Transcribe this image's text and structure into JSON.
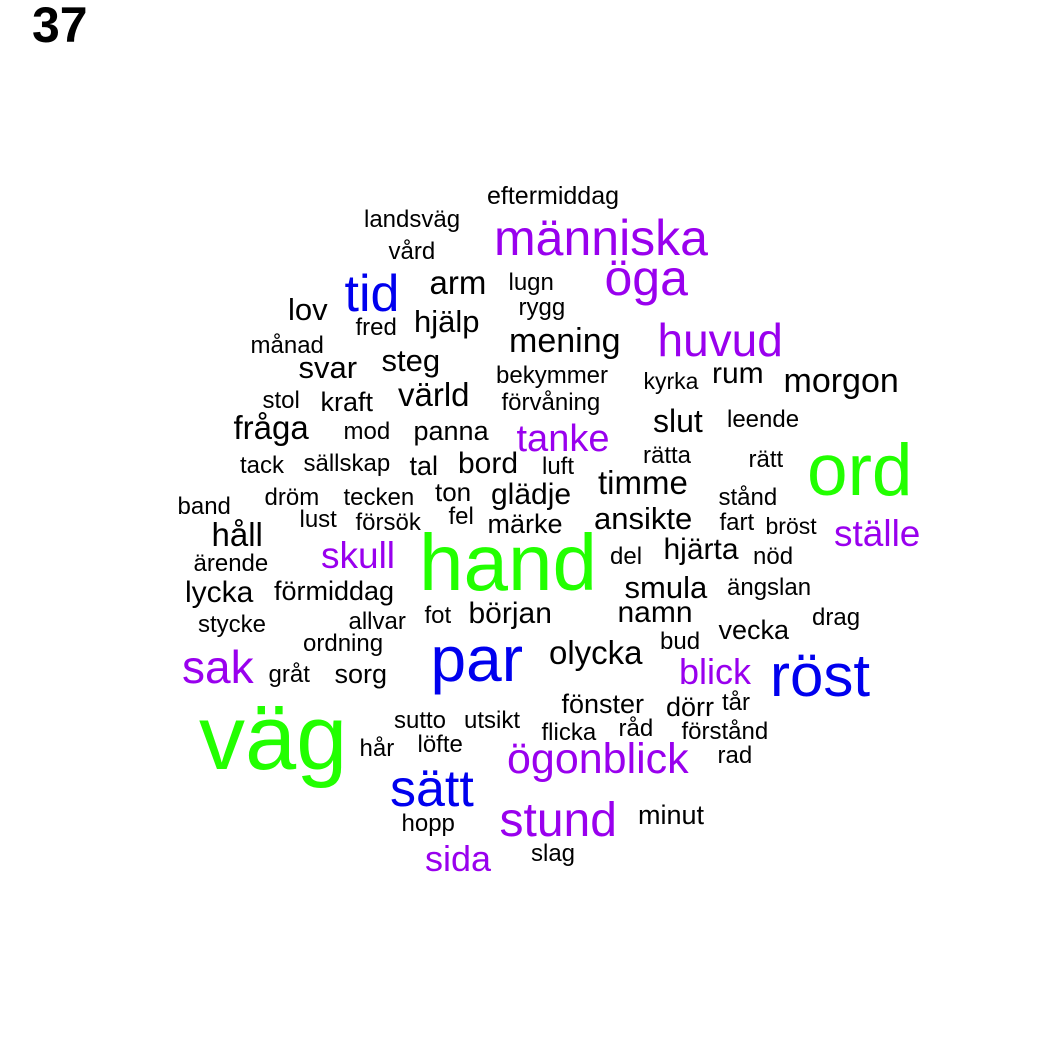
{
  "page_number": "37",
  "colors": {
    "tier_1": "#22ff00",
    "tier_2": "#0000ee",
    "tier_3": "#9900ee",
    "tier_4": "#000000"
  },
  "words": [
    {
      "text": "väg",
      "tier": 1
    },
    {
      "text": "hand",
      "tier": 1
    },
    {
      "text": "ord",
      "tier": 1
    },
    {
      "text": "par",
      "tier": 2
    },
    {
      "text": "röst",
      "tier": 2
    },
    {
      "text": "sätt",
      "tier": 2
    },
    {
      "text": "tid",
      "tier": 2
    },
    {
      "text": "människa",
      "tier": 3
    },
    {
      "text": "öga",
      "tier": 3
    },
    {
      "text": "huvud",
      "tier": 3
    },
    {
      "text": "tanke",
      "tier": 3
    },
    {
      "text": "ställe",
      "tier": 3
    },
    {
      "text": "skull",
      "tier": 3
    },
    {
      "text": "sak",
      "tier": 3
    },
    {
      "text": "blick",
      "tier": 3
    },
    {
      "text": "ögonblick",
      "tier": 3
    },
    {
      "text": "stund",
      "tier": 3
    },
    {
      "text": "sida",
      "tier": 3
    },
    {
      "text": "eftermiddag",
      "tier": 4
    },
    {
      "text": "landsväg",
      "tier": 4
    },
    {
      "text": "vård",
      "tier": 4
    },
    {
      "text": "arm",
      "tier": 4
    },
    {
      "text": "lugn",
      "tier": 4
    },
    {
      "text": "lov",
      "tier": 4
    },
    {
      "text": "rygg",
      "tier": 4
    },
    {
      "text": "fred",
      "tier": 4
    },
    {
      "text": "hjälp",
      "tier": 4
    },
    {
      "text": "månad",
      "tier": 4
    },
    {
      "text": "mening",
      "tier": 4
    },
    {
      "text": "steg",
      "tier": 4
    },
    {
      "text": "svar",
      "tier": 4
    },
    {
      "text": "bekymmer",
      "tier": 4
    },
    {
      "text": "kyrka",
      "tier": 4
    },
    {
      "text": "rum",
      "tier": 4
    },
    {
      "text": "morgon",
      "tier": 4
    },
    {
      "text": "stol",
      "tier": 4
    },
    {
      "text": "kraft",
      "tier": 4
    },
    {
      "text": "värld",
      "tier": 4
    },
    {
      "text": "förvåning",
      "tier": 4
    },
    {
      "text": "slut",
      "tier": 4
    },
    {
      "text": "leende",
      "tier": 4
    },
    {
      "text": "fråga",
      "tier": 4
    },
    {
      "text": "mod",
      "tier": 4
    },
    {
      "text": "panna",
      "tier": 4
    },
    {
      "text": "rätta",
      "tier": 4
    },
    {
      "text": "rätt",
      "tier": 4
    },
    {
      "text": "tack",
      "tier": 4
    },
    {
      "text": "sällskap",
      "tier": 4
    },
    {
      "text": "tal",
      "tier": 4
    },
    {
      "text": "bord",
      "tier": 4
    },
    {
      "text": "luft",
      "tier": 4
    },
    {
      "text": "timme",
      "tier": 4
    },
    {
      "text": "band",
      "tier": 4
    },
    {
      "text": "dröm",
      "tier": 4
    },
    {
      "text": "tecken",
      "tier": 4
    },
    {
      "text": "ton",
      "tier": 4
    },
    {
      "text": "glädje",
      "tier": 4
    },
    {
      "text": "stånd",
      "tier": 4
    },
    {
      "text": "håll",
      "tier": 4
    },
    {
      "text": "lust",
      "tier": 4
    },
    {
      "text": "försök",
      "tier": 4
    },
    {
      "text": "fel",
      "tier": 4
    },
    {
      "text": "märke",
      "tier": 4
    },
    {
      "text": "ansikte",
      "tier": 4
    },
    {
      "text": "fart",
      "tier": 4
    },
    {
      "text": "bröst",
      "tier": 4
    },
    {
      "text": "ärende",
      "tier": 4
    },
    {
      "text": "del",
      "tier": 4
    },
    {
      "text": "hjärta",
      "tier": 4
    },
    {
      "text": "nöd",
      "tier": 4
    },
    {
      "text": "lycka",
      "tier": 4
    },
    {
      "text": "förmiddag",
      "tier": 4
    },
    {
      "text": "smula",
      "tier": 4
    },
    {
      "text": "ängslan",
      "tier": 4
    },
    {
      "text": "stycke",
      "tier": 4
    },
    {
      "text": "allvar",
      "tier": 4
    },
    {
      "text": "fot",
      "tier": 4
    },
    {
      "text": "början",
      "tier": 4
    },
    {
      "text": "namn",
      "tier": 4
    },
    {
      "text": "drag",
      "tier": 4
    },
    {
      "text": "ordning",
      "tier": 4
    },
    {
      "text": "vecka",
      "tier": 4
    },
    {
      "text": "bud",
      "tier": 4
    },
    {
      "text": "olycka",
      "tier": 4
    },
    {
      "text": "gråt",
      "tier": 4
    },
    {
      "text": "sorg",
      "tier": 4
    },
    {
      "text": "fönster",
      "tier": 4
    },
    {
      "text": "dörr",
      "tier": 4
    },
    {
      "text": "tår",
      "tier": 4
    },
    {
      "text": "sutto",
      "tier": 4
    },
    {
      "text": "utsikt",
      "tier": 4
    },
    {
      "text": "flicka",
      "tier": 4
    },
    {
      "text": "råd",
      "tier": 4
    },
    {
      "text": "förstånd",
      "tier": 4
    },
    {
      "text": "hår",
      "tier": 4
    },
    {
      "text": "löfte",
      "tier": 4
    },
    {
      "text": "rad",
      "tier": 4
    },
    {
      "text": "hopp",
      "tier": 4
    },
    {
      "text": "minut",
      "tier": 4
    },
    {
      "text": "slag",
      "tier": 4
    }
  ]
}
